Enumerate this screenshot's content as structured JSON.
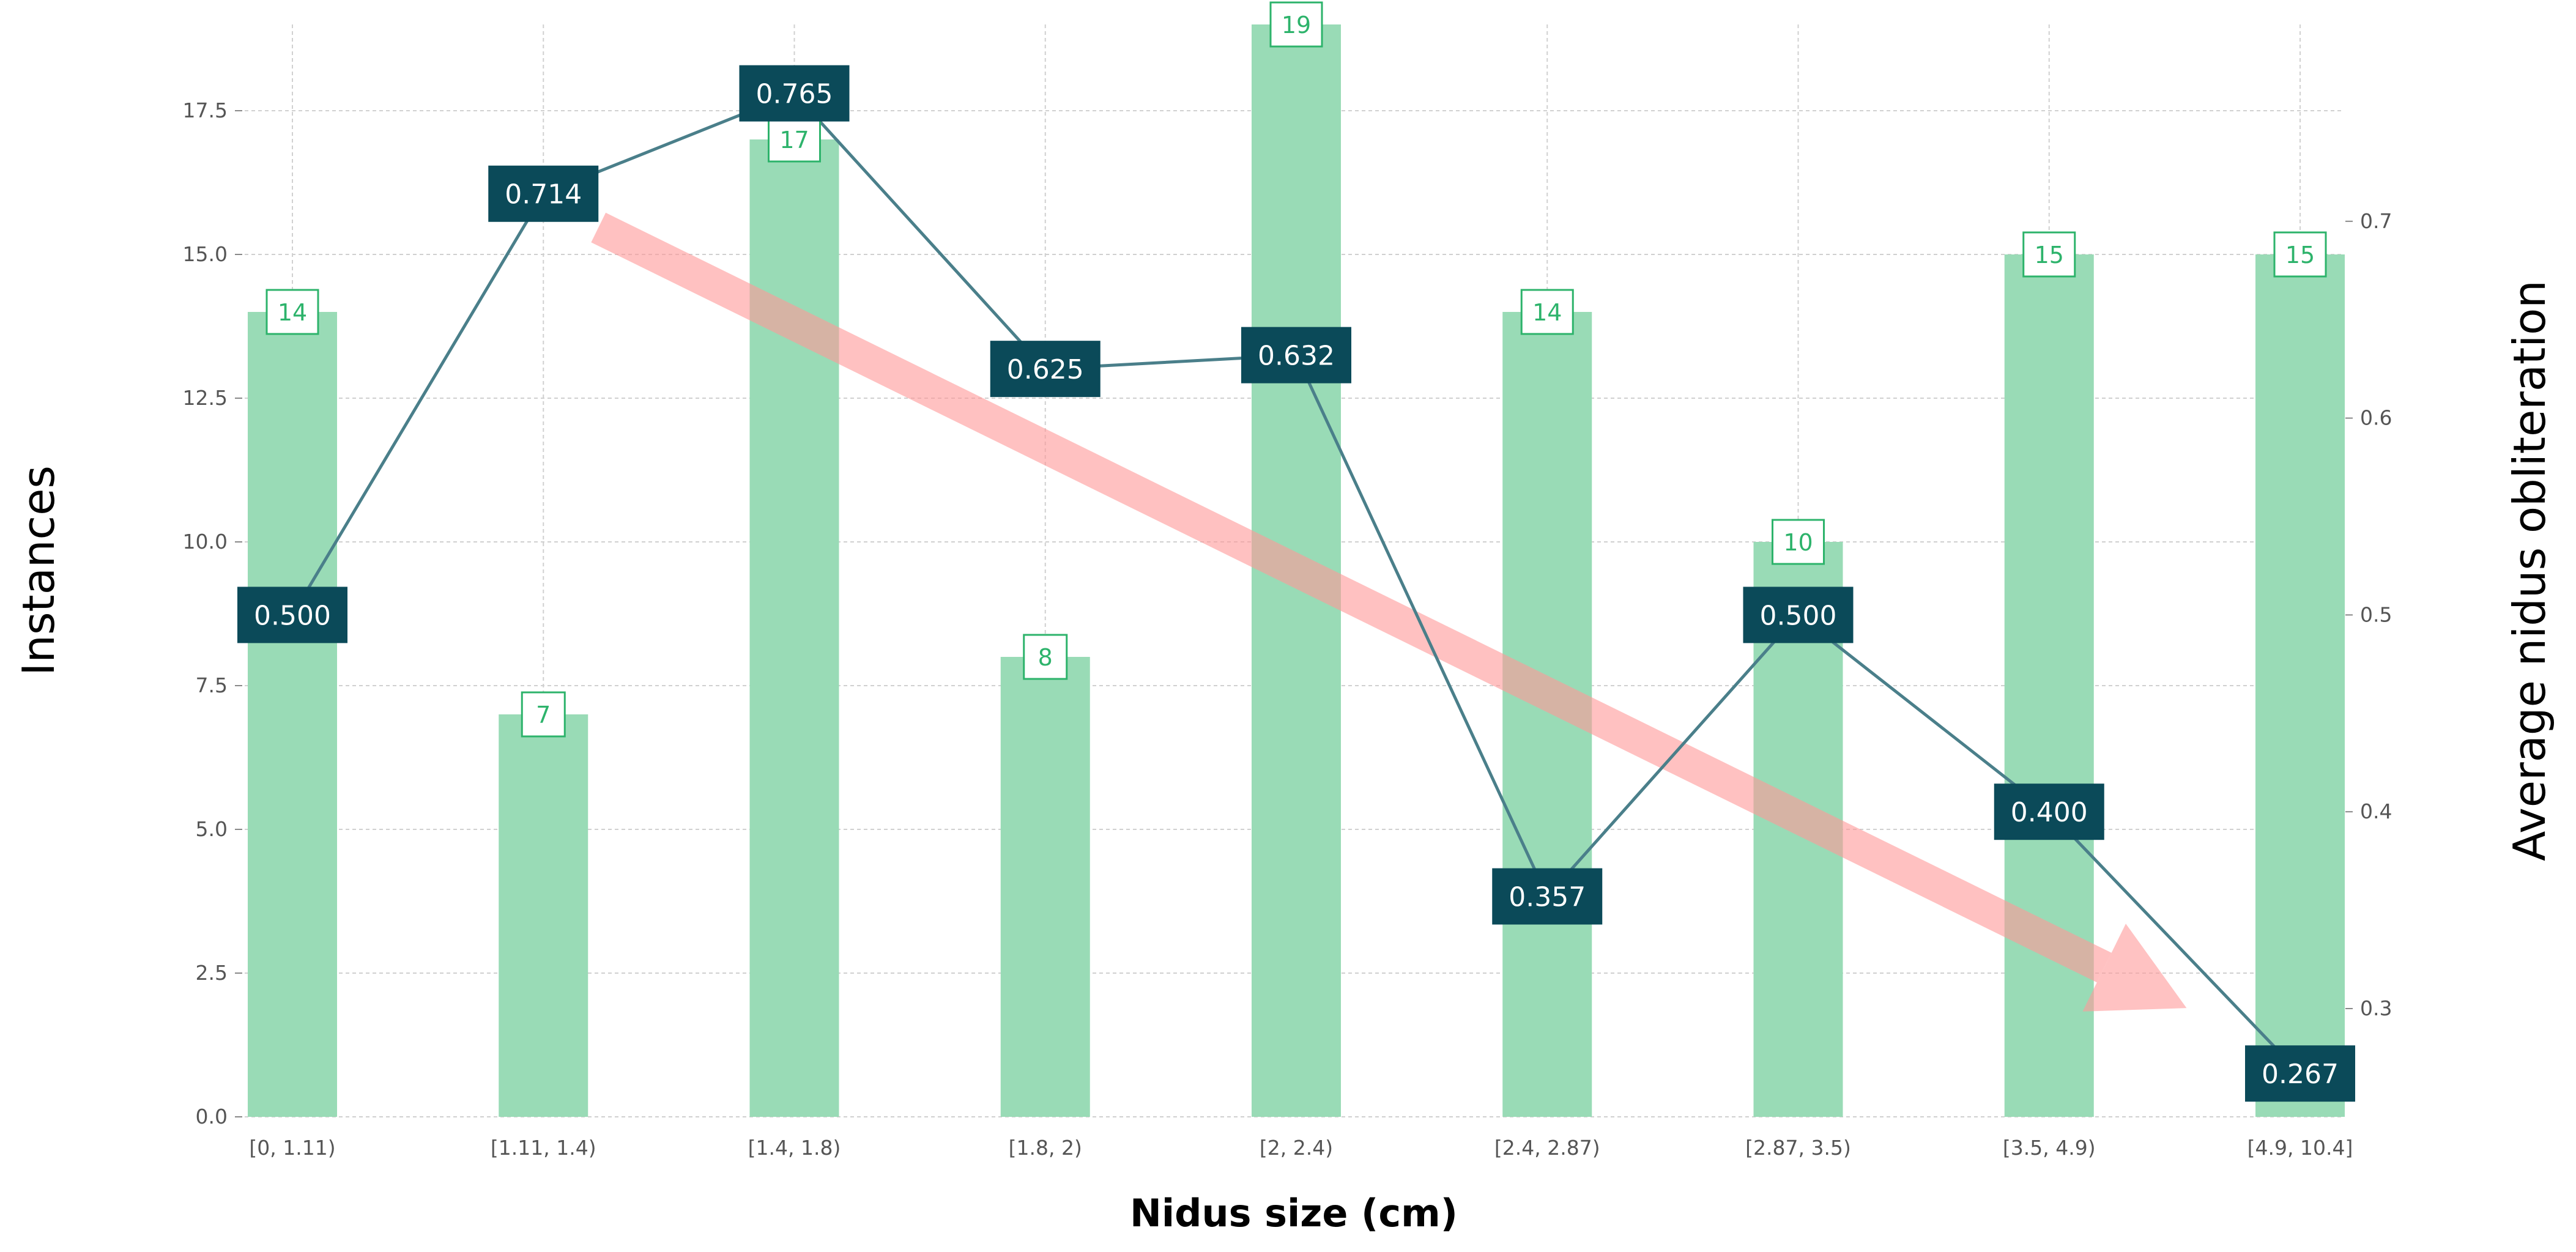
{
  "chart_data": {
    "type": "bar",
    "categories": [
      "[0, 1.11)",
      "[1.11, 1.4)",
      "[1.4, 1.8)",
      "[1.8, 2)",
      "[2, 2.4)",
      "[2.4, 2.87)",
      "[2.87, 3.5)",
      "[3.5, 4.9)",
      "[4.9, 10.4]"
    ],
    "series": [
      {
        "type": "bar",
        "axis": "left",
        "values": [
          14,
          7,
          17,
          8,
          19,
          14,
          10,
          15,
          15
        ]
      },
      {
        "type": "line",
        "axis": "right",
        "values": [
          "0.500",
          "0.714",
          "0.765",
          "0.625",
          "0.632",
          "0.357",
          "0.500",
          "0.400",
          "0.267"
        ]
      }
    ],
    "xlabel": "Nidus size (cm)",
    "ylabel": "Instances",
    "ylabel_right": "Average nidus obliteration",
    "ylim": [
      0,
      19
    ],
    "ylim_right": [
      0.245,
      0.8
    ],
    "yticks": [
      "0.0",
      "2.5",
      "5.0",
      "7.5",
      "10.0",
      "12.5",
      "15.0",
      "17.5"
    ],
    "yticks_right": [
      "0.3",
      "0.4",
      "0.5",
      "0.6",
      "0.7"
    ],
    "grid": true,
    "trend_arrow": "decreasing, from [1.11, 1.4) toward [4.9, 10.4]",
    "colors": {
      "bar": "#99dbb6",
      "bar_label": "#2db36b",
      "line": "#4a7f8a",
      "line_box": "#0b4a59",
      "arrow": "#ff9999",
      "grid": "#d0d0d0"
    }
  }
}
